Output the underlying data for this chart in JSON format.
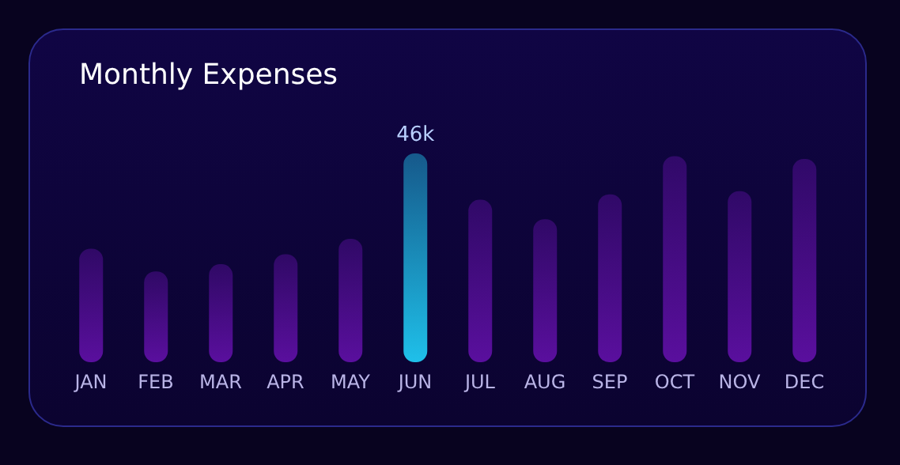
{
  "chart_data": {
    "type": "bar",
    "title": "Monthly Expenses",
    "categories": [
      "JAN",
      "FEB",
      "MAR",
      "APR",
      "MAY",
      "JUN",
      "JUL",
      "AUG",
      "SEP",
      "OCT",
      "NOV",
      "DEC"
    ],
    "values": [
      25,
      20,
      21.6,
      23.8,
      27.2,
      46,
      35.8,
      31.5,
      37,
      45.4,
      37.7,
      44.8
    ],
    "colors": [
      "#5a0f9e",
      "#5a0f9e",
      "#5a0f9e",
      "#5a0f9e",
      "#5a0f9e",
      "#1fc0ea",
      "#5a0f9e",
      "#5a0f9e",
      "#5a0f9e",
      "#5a0f9e",
      "#5a0f9e",
      "#5a0f9e"
    ],
    "value_labels": [
      null,
      null,
      null,
      null,
      null,
      "46k",
      null,
      null,
      null,
      null,
      null,
      null
    ],
    "grid": false,
    "legend": false
  }
}
